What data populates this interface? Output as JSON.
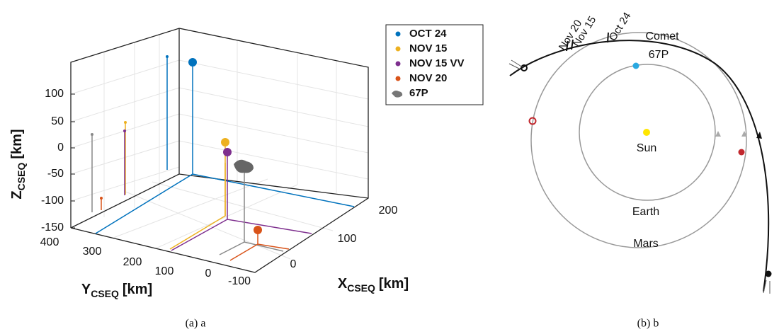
{
  "figure_a": {
    "z_axis": {
      "letter": "Z",
      "subscript": "CSEQ",
      "unit": "[km]"
    },
    "y_axis": {
      "letter": "Y",
      "subscript": "CSEQ",
      "unit": "[km]"
    },
    "x_axis": {
      "letter": "X",
      "subscript": "CSEQ",
      "unit": "[km]"
    },
    "z_ticks": [
      100,
      50,
      0,
      -50,
      -100,
      -150
    ],
    "y_ticks": [
      400,
      300,
      200,
      100,
      0,
      -100
    ],
    "x_ticks": [
      200,
      100,
      0
    ],
    "legend": [
      {
        "name": "OCT 24",
        "color": "#0072bd"
      },
      {
        "name": "NOV 15",
        "color": "#edb120"
      },
      {
        "name": "NOV 15 VV",
        "color": "#7e2f8e"
      },
      {
        "name": "NOV 20",
        "color": "#d95319"
      },
      {
        "name": "67P",
        "color": "#777777"
      }
    ],
    "caption": "(a) a"
  },
  "figure_b": {
    "labels": {
      "comet": "Comet",
      "comet_id": "67P",
      "sun": "Sun",
      "earth": "Earth",
      "mars": "Mars"
    },
    "dates": [
      "Nov 20",
      "Nov 15",
      "Oct 24"
    ],
    "caption": "(b) b"
  }
}
